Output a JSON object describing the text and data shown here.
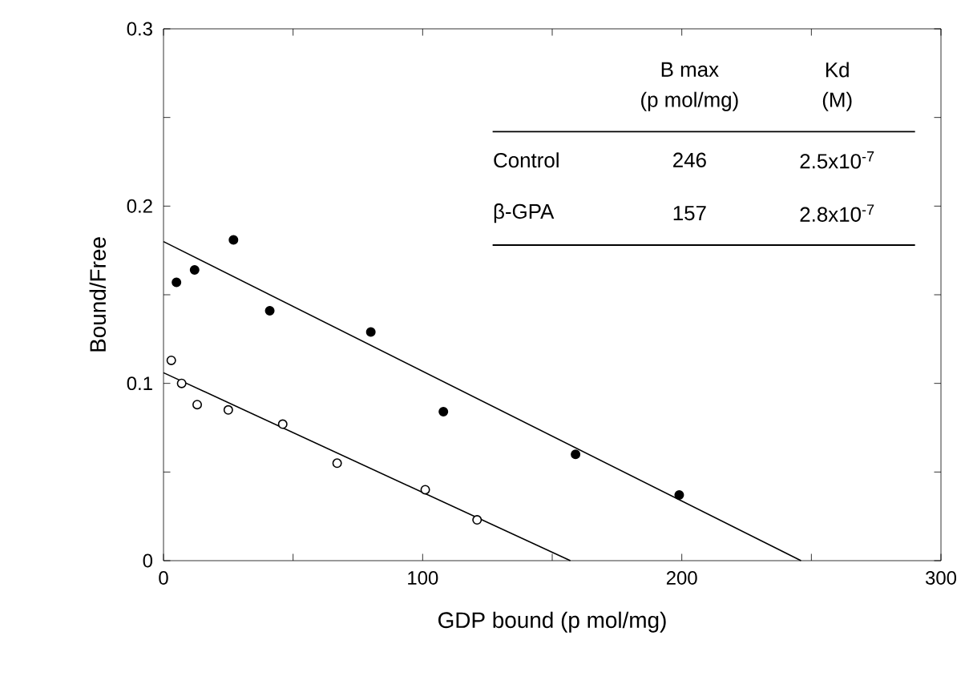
{
  "chart_data": {
    "type": "scatter",
    "xlabel": "GDP bound (p mol/mg)",
    "ylabel": "Bound/Free",
    "xlim": [
      0,
      300
    ],
    "ylim": [
      0,
      0.3
    ],
    "xticks": [
      0,
      {
        "value": 50,
        "label": null
      },
      100,
      {
        "value": 150,
        "label": null
      },
      200,
      {
        "value": 250,
        "label": null
      },
      300
    ],
    "yticks": [
      0,
      {
        "value": 0.05,
        "label": null
      },
      0.1,
      {
        "value": 0.15,
        "label": null
      },
      0.2,
      {
        "value": 0.25,
        "label": null
      },
      0.3
    ],
    "grid": false,
    "series": [
      {
        "marker": "circle",
        "color": "#000000",
        "x": [
          5,
          12,
          27,
          41,
          80,
          108,
          159,
          199
        ],
        "values": [
          0.157,
          0.164,
          0.181,
          0.141,
          0.129,
          0.084,
          0.06,
          0.037
        ]
      },
      {
        "marker": "circle",
        "color": "#ffffff",
        "x": [
          3,
          7,
          13,
          25,
          46,
          67,
          101,
          121
        ],
        "values": [
          0.113,
          0.1,
          0.088,
          0.085,
          0.077,
          0.055,
          0.04,
          0.023
        ]
      },
      {
        "type": "line",
        "marker": "none",
        "line_style": "solid",
        "color": "#000000",
        "x": [
          0,
          246
        ],
        "values": [
          0.18,
          0
        ]
      },
      {
        "type": "line",
        "marker": "none",
        "line_style": "solid",
        "color": "#000000",
        "x": [
          0,
          157
        ],
        "values": [
          0.106,
          0
        ]
      }
    ],
    "annotations": [
      "B max",
      "(p mol/mg)",
      "Kd",
      "(M)",
      "Control",
      "246",
      "2.5x10$^{-7}$",
      "β-GPA",
      "157",
      "2.8x10$^{-7}$"
    ]
  }
}
